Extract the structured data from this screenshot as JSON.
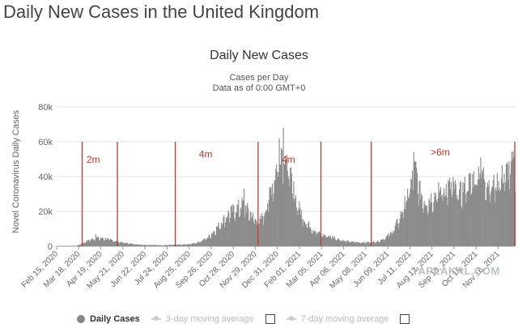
{
  "page": {
    "title": "Daily New Cases in the United Kingdom",
    "watermark": "YAPLAKAL.COM"
  },
  "chart_data": {
    "type": "bar",
    "title": "Daily New Cases",
    "subtitle": [
      "Cases per Day",
      "Data as of 0:00 GMT+0"
    ],
    "ylabel": "Novel Coronavirus Daily Cases",
    "xlabel": "",
    "ylim": [
      0,
      80000
    ],
    "yticks": [
      0,
      20000,
      40000,
      60000,
      80000
    ],
    "ytick_labels": [
      "0",
      "20k",
      "40k",
      "60k",
      "80k"
    ],
    "date_range": [
      "2020-02-15",
      "2021-12-10"
    ],
    "xtick_dates": [
      "2020-02-15",
      "2020-03-18",
      "2020-04-19",
      "2020-05-21",
      "2020-06-22",
      "2020-07-24",
      "2020-08-25",
      "2020-09-26",
      "2020-10-28",
      "2020-11-29",
      "2020-12-31",
      "2021-02-01",
      "2021-03-05",
      "2021-04-06",
      "2021-05-08",
      "2021-06-09",
      "2021-07-11",
      "2021-08-12",
      "2021-09-13",
      "2021-10-15",
      "2021-11-16"
    ],
    "xtick_labels": [
      "Feb 15, 2020",
      "Mar 18, 2020",
      "Apr 19, 2020",
      "May 21, 2020",
      "Jun 22, 2020",
      "Jul 24, 2020",
      "Aug 25, 2020",
      "Sep 26, 2020",
      "Oct 28, 2020",
      "Nov 29, 2020",
      "Dec 31, 2020",
      "Feb 01, 2021",
      "Mar 05, 2021",
      "Apr 06, 2021",
      "May 08, 2021",
      "Jun 09, 2021",
      "Jul 11, 2021",
      "Aug 12, 2021",
      "Sep 13, 2021",
      "Oct 15, 2021",
      "Nov 16, 2021"
    ],
    "trend_points": [
      [
        "2020-02-15",
        0
      ],
      [
        "2020-03-15",
        300
      ],
      [
        "2020-04-01",
        3500
      ],
      [
        "2020-04-12",
        5000
      ],
      [
        "2020-04-25",
        4500
      ],
      [
        "2020-05-10",
        3000
      ],
      [
        "2020-05-25",
        1800
      ],
      [
        "2020-06-15",
        900
      ],
      [
        "2020-07-15",
        600
      ],
      [
        "2020-08-10",
        900
      ],
      [
        "2020-08-25",
        1200
      ],
      [
        "2020-09-08",
        2500
      ],
      [
        "2020-09-20",
        5000
      ],
      [
        "2020-10-01",
        9500
      ],
      [
        "2020-10-10",
        14000
      ],
      [
        "2020-10-20",
        19000
      ],
      [
        "2020-11-01",
        22000
      ],
      [
        "2020-11-10",
        24500
      ],
      [
        "2020-11-20",
        20000
      ],
      [
        "2020-11-29",
        15000
      ],
      [
        "2020-12-05",
        14500
      ],
      [
        "2020-12-12",
        20000
      ],
      [
        "2020-12-20",
        32000
      ],
      [
        "2020-12-27",
        42000
      ],
      [
        "2021-01-04",
        57000
      ],
      [
        "2021-01-10",
        55000
      ],
      [
        "2021-01-18",
        40000
      ],
      [
        "2021-01-28",
        25000
      ],
      [
        "2021-02-08",
        15000
      ],
      [
        "2021-02-20",
        10000
      ],
      [
        "2021-03-05",
        6500
      ],
      [
        "2021-03-20",
        5500
      ],
      [
        "2021-04-06",
        3000
      ],
      [
        "2021-04-20",
        2400
      ],
      [
        "2021-05-08",
        2200
      ],
      [
        "2021-05-25",
        2800
      ],
      [
        "2021-06-05",
        5000
      ],
      [
        "2021-06-15",
        8500
      ],
      [
        "2021-06-25",
        16000
      ],
      [
        "2021-07-05",
        27000
      ],
      [
        "2021-07-12",
        36000
      ],
      [
        "2021-07-18",
        45000
      ],
      [
        "2021-07-25",
        32000
      ],
      [
        "2021-08-02",
        26000
      ],
      [
        "2021-08-12",
        29000
      ],
      [
        "2021-08-22",
        32000
      ],
      [
        "2021-09-01",
        34000
      ],
      [
        "2021-09-10",
        35000
      ],
      [
        "2021-09-20",
        31000
      ],
      [
        "2021-10-01",
        36000
      ],
      [
        "2021-10-12",
        40000
      ],
      [
        "2021-10-20",
        45000
      ],
      [
        "2021-10-27",
        40000
      ],
      [
        "2021-11-05",
        35000
      ],
      [
        "2021-11-15",
        38000
      ],
      [
        "2021-11-25",
        42000
      ],
      [
        "2021-12-03",
        46000
      ],
      [
        "2021-12-10",
        48000
      ]
    ],
    "spikes": [
      [
        "2020-04-11",
        7000
      ],
      [
        "2020-11-12",
        33000
      ],
      [
        "2021-01-08",
        68000
      ],
      [
        "2021-01-02",
        62000
      ],
      [
        "2021-07-16",
        54000
      ],
      [
        "2021-10-21",
        51000
      ],
      [
        "2021-12-08",
        51000
      ]
    ],
    "bar_color": "#8c8c8c",
    "marker_color": "#c0392b",
    "markers": [
      "2020-03-23",
      "2020-05-13",
      "2020-08-05",
      "2020-12-03",
      "2021-03-04",
      "2021-05-16",
      "2021-12-10"
    ],
    "annotations": [
      {
        "text": "2m",
        "date": "2020-04-08",
        "y": 48000
      },
      {
        "text": "4m",
        "date": "2020-09-18",
        "y": 51000
      },
      {
        "text": "4m",
        "date": "2021-01-16",
        "y": 48000
      },
      {
        "text": ">6m",
        "date": "2021-08-24",
        "y": 52000
      }
    ],
    "legend": {
      "position": "bottom",
      "items": [
        {
          "name": "Daily Cases",
          "active": true
        },
        {
          "name": "3-day moving average",
          "active": false
        },
        {
          "name": "7-day moving average",
          "active": false
        }
      ]
    }
  }
}
